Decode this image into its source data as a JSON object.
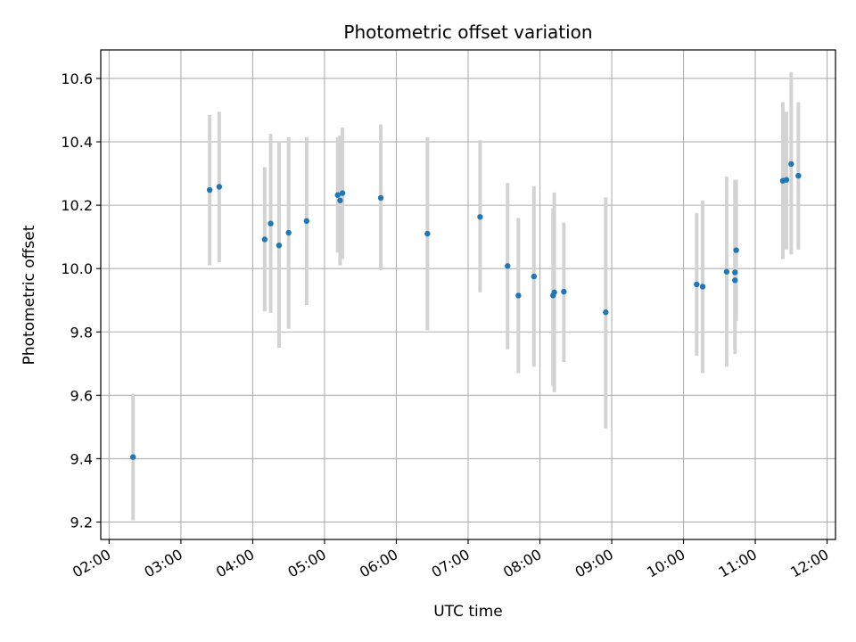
{
  "chart_data": {
    "type": "scatter",
    "title": "Photometric offset variation",
    "xlabel": "UTC time",
    "ylabel": "Photometric offset",
    "xlim": [
      "01:53",
      "12:07"
    ],
    "ylim": [
      9.145,
      10.69
    ],
    "grid": true,
    "x_ticks": [
      "02:00",
      "03:00",
      "04:00",
      "05:00",
      "06:00",
      "07:00",
      "08:00",
      "09:00",
      "10:00",
      "11:00",
      "12:00"
    ],
    "y_ticks": [
      "9.2",
      "9.4",
      "9.6",
      "9.8",
      "10.0",
      "10.2",
      "10.4",
      "10.6"
    ],
    "colors": {
      "points": "#1f77b4",
      "error_bars": "#d3d3d3",
      "grid": "#b0b0b0"
    },
    "points": [
      {
        "x": "02:20",
        "y": 9.405,
        "ylow": 9.205,
        "yhigh": 9.605
      },
      {
        "x": "03:24",
        "y": 10.248,
        "ylow": 10.01,
        "yhigh": 10.485
      },
      {
        "x": "03:32",
        "y": 10.258,
        "ylow": 10.02,
        "yhigh": 10.495
      },
      {
        "x": "04:10",
        "y": 10.092,
        "ylow": 9.865,
        "yhigh": 10.32
      },
      {
        "x": "04:15",
        "y": 10.142,
        "ylow": 9.86,
        "yhigh": 10.425
      },
      {
        "x": "04:22",
        "y": 10.073,
        "ylow": 9.75,
        "yhigh": 10.4
      },
      {
        "x": "04:30",
        "y": 10.113,
        "ylow": 9.81,
        "yhigh": 10.415
      },
      {
        "x": "04:45",
        "y": 10.15,
        "ylow": 9.885,
        "yhigh": 10.415
      },
      {
        "x": "05:11",
        "y": 10.232,
        "ylow": 10.05,
        "yhigh": 10.415
      },
      {
        "x": "05:13",
        "y": 10.215,
        "ylow": 10.01,
        "yhigh": 10.42
      },
      {
        "x": "05:15",
        "y": 10.238,
        "ylow": 10.03,
        "yhigh": 10.445
      },
      {
        "x": "05:47",
        "y": 10.223,
        "ylow": 9.995,
        "yhigh": 10.455
      },
      {
        "x": "06:26",
        "y": 10.11,
        "ylow": 9.805,
        "yhigh": 10.415
      },
      {
        "x": "07:10",
        "y": 10.163,
        "ylow": 9.925,
        "yhigh": 10.405
      },
      {
        "x": "07:33",
        "y": 10.008,
        "ylow": 9.745,
        "yhigh": 10.27
      },
      {
        "x": "07:42",
        "y": 9.915,
        "ylow": 9.67,
        "yhigh": 10.16
      },
      {
        "x": "07:55",
        "y": 9.975,
        "ylow": 9.69,
        "yhigh": 10.26
      },
      {
        "x": "08:11",
        "y": 9.915,
        "ylow": 9.63,
        "yhigh": 10.19
      },
      {
        "x": "08:12",
        "y": 9.925,
        "ylow": 9.61,
        "yhigh": 10.24
      },
      {
        "x": "08:20",
        "y": 9.927,
        "ylow": 9.705,
        "yhigh": 10.145
      },
      {
        "x": "08:55",
        "y": 9.862,
        "ylow": 9.495,
        "yhigh": 10.225
      },
      {
        "x": "10:11",
        "y": 9.95,
        "ylow": 9.725,
        "yhigh": 10.175
      },
      {
        "x": "10:16",
        "y": 9.943,
        "ylow": 9.67,
        "yhigh": 10.215
      },
      {
        "x": "10:36",
        "y": 9.99,
        "ylow": 9.69,
        "yhigh": 10.29
      },
      {
        "x": "10:43",
        "y": 9.963,
        "ylow": 9.73,
        "yhigh": 10.195
      },
      {
        "x": "10:43",
        "y": 9.988,
        "ylow": 9.795,
        "yhigh": 10.28
      },
      {
        "x": "10:44",
        "y": 10.058,
        "ylow": 9.835,
        "yhigh": 10.28
      },
      {
        "x": "11:23",
        "y": 10.277,
        "ylow": 10.03,
        "yhigh": 10.525
      },
      {
        "x": "11:26",
        "y": 10.28,
        "ylow": 10.06,
        "yhigh": 10.495
      },
      {
        "x": "11:30",
        "y": 10.33,
        "ylow": 10.045,
        "yhigh": 10.62
      },
      {
        "x": "11:36",
        "y": 10.293,
        "ylow": 10.06,
        "yhigh": 10.525
      }
    ]
  }
}
